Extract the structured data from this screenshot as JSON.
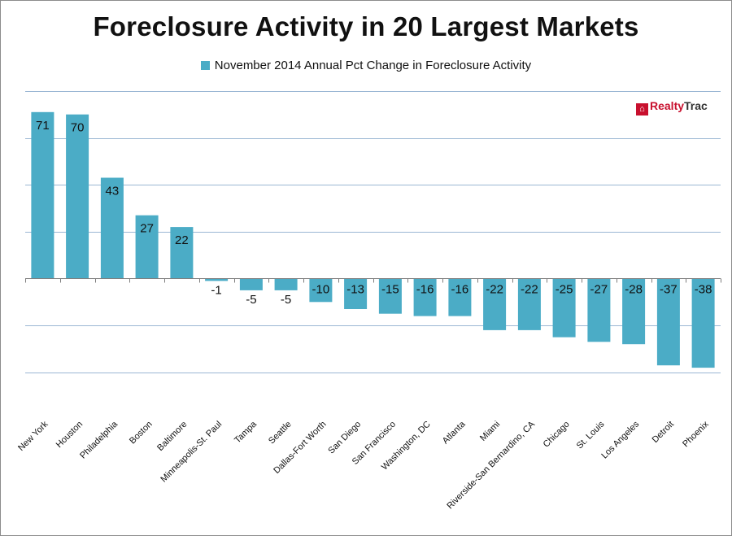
{
  "chart_data": {
    "type": "bar",
    "title": "Foreclosure Activity in 20 Largest Markets",
    "legend_position": "top",
    "grid": true,
    "ylim": [
      -50,
      87.5
    ],
    "series": [
      {
        "name": "November 2014 Annual Pct Change in Foreclosure Activity",
        "color": "#4bacc6",
        "values": [
          71,
          70,
          43,
          27,
          22,
          -1,
          -5,
          -5,
          -10,
          -13,
          -15,
          -16,
          -16,
          -22,
          -22,
          -25,
          -27,
          -28,
          -37,
          -38
        ]
      }
    ],
    "categories": [
      "New York",
      "Houston",
      "Philadelphia",
      "Boston",
      "Baltimore",
      "Minneapolis-St. Paul",
      "Tampa",
      "Seattle",
      "Dallas-Fort Worth",
      "San Diego",
      "San Francisco",
      "Washington, DC",
      "Atlanta",
      "Miami",
      "Riverside-San Bernardino, CA",
      "Chicago",
      "St. Louis",
      "Los Angeles",
      "Detroit",
      "Phoenix"
    ],
    "data_labels": [
      "71",
      "70",
      "43",
      "27",
      "22",
      "-1",
      "-5",
      "-5",
      "-10",
      "-13",
      "-15",
      "-16",
      "-16",
      "-22",
      "-22",
      "-25",
      "-27",
      "-28",
      "-37",
      "-38"
    ]
  },
  "logo": {
    "text": "RealtyTrac",
    "prefix": "Realty",
    "suffix": "Trac",
    "icon": "house-icon",
    "color": "#c8102e"
  },
  "colors": {
    "bar": "#4bacc6",
    "gridline": "#9bb7d4",
    "axis": "#7f7f7f"
  }
}
